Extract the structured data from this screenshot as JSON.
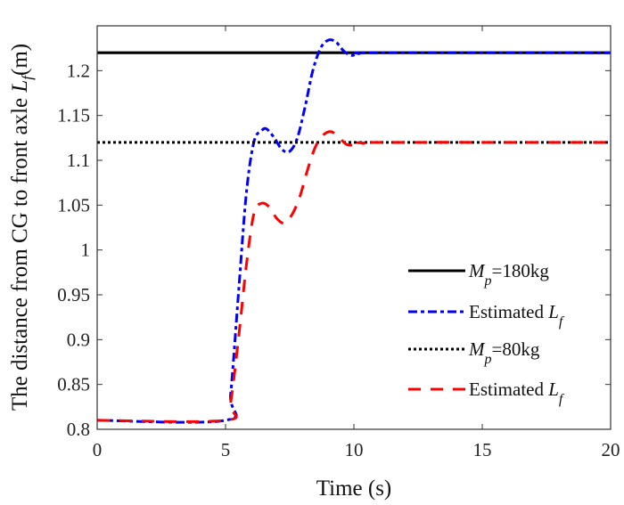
{
  "chart_data": {
    "type": "line",
    "title": "",
    "xlabel": "Time (s)",
    "ylabel_main": "The distance from CG to front axle ",
    "ylabel_symbol": "L",
    "ylabel_subscript": "f",
    "ylabel_unit": "(m)",
    "xlim": [
      0,
      20
    ],
    "ylim": [
      0.8,
      1.25
    ],
    "xticks": [
      0,
      5,
      10,
      15,
      20
    ],
    "xtick_labels": [
      "0",
      "5",
      "10",
      "15",
      "20"
    ],
    "yticks": [
      0.8,
      0.85,
      0.9,
      0.95,
      1.0,
      1.05,
      1.1,
      1.15,
      1.2
    ],
    "ytick_labels": [
      "0.8",
      "0.85",
      "0.9",
      "0.95",
      "1",
      "1.05",
      "1.1",
      "1.15",
      "1.2"
    ],
    "grid": false,
    "legend_position": "right",
    "series": [
      {
        "name": "Mp=180kg",
        "legend_symbol": "M",
        "legend_subscript": "p",
        "legend_suffix": "=180kg",
        "color": "#000000",
        "style": "solid",
        "x": [
          0,
          20
        ],
        "y": [
          1.22,
          1.22
        ]
      },
      {
        "name": "Estimated Lf (180kg)",
        "legend_prefix": "Estimated ",
        "legend_symbol": "L",
        "legend_subscript": "f",
        "color": "#0000ff",
        "style": "dashdot",
        "x": [
          0,
          5.0,
          5.2,
          5.5,
          5.8,
          6.1,
          6.4,
          6.6,
          6.9,
          7.2,
          7.5,
          7.8,
          8.1,
          8.4,
          8.7,
          9.0,
          9.3,
          9.6,
          9.9,
          10.2,
          11,
          20
        ],
        "y": [
          0.81,
          0.81,
          0.84,
          0.95,
          1.06,
          1.12,
          1.133,
          1.135,
          1.125,
          1.112,
          1.11,
          1.125,
          1.16,
          1.2,
          1.225,
          1.234,
          1.232,
          1.222,
          1.217,
          1.219,
          1.22,
          1.22
        ]
      },
      {
        "name": "Mp=80kg",
        "legend_symbol": "M",
        "legend_subscript": "p",
        "legend_suffix": "=80kg",
        "color": "#000000",
        "style": "dotted",
        "x": [
          0,
          20
        ],
        "y": [
          1.12,
          1.12
        ]
      },
      {
        "name": "Estimated Lf (80kg)",
        "legend_prefix": "Estimated ",
        "legend_symbol": "L",
        "legend_subscript": "f",
        "color": "#ff0000",
        "style": "dashed",
        "x": [
          0,
          5.0,
          5.2,
          5.5,
          5.8,
          6.1,
          6.4,
          6.7,
          7.0,
          7.3,
          7.6,
          7.9,
          8.2,
          8.5,
          8.8,
          9.1,
          9.4,
          9.7,
          10.0,
          10.4,
          11,
          20
        ],
        "y": [
          0.81,
          0.81,
          0.83,
          0.9,
          0.98,
          1.04,
          1.052,
          1.048,
          1.035,
          1.03,
          1.04,
          1.06,
          1.09,
          1.115,
          1.128,
          1.132,
          1.126,
          1.118,
          1.117,
          1.119,
          1.12,
          1.12
        ]
      }
    ]
  }
}
